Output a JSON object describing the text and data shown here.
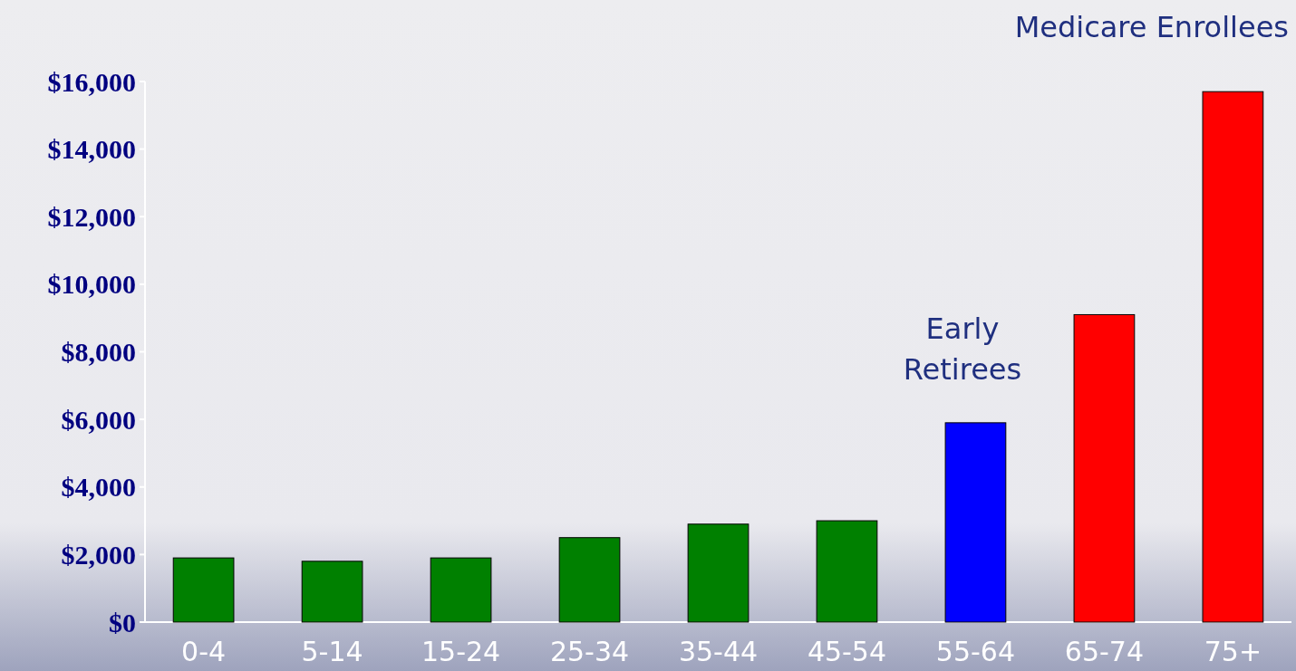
{
  "chart_data": {
    "type": "bar",
    "categories": [
      "0-4",
      "5-14",
      "15-24",
      "25-34",
      "35-44",
      "45-54",
      "55-64",
      "65-74",
      "75+"
    ],
    "values": [
      1900,
      1800,
      1900,
      2500,
      2900,
      3000,
      5900,
      9100,
      15700
    ],
    "colors": [
      "#008000",
      "#008000",
      "#008000",
      "#008000",
      "#008000",
      "#008000",
      "#0000ff",
      "#ff0000",
      "#ff0000"
    ],
    "ylim": [
      0,
      16000
    ],
    "yticks": [
      {
        "value": 0,
        "label": "$0"
      },
      {
        "value": 2000,
        "label": "$2,000"
      },
      {
        "value": 4000,
        "label": "$4,000"
      },
      {
        "value": 6000,
        "label": "$6,000"
      },
      {
        "value": 8000,
        "label": "$8,000"
      },
      {
        "value": 10000,
        "label": "$10,000"
      },
      {
        "value": 12000,
        "label": "$12,000"
      },
      {
        "value": 14000,
        "label": "$14,000"
      },
      {
        "value": 16000,
        "label": "$16,000"
      }
    ],
    "annotations": [
      "Early\nRetirees",
      "Medicare Enrollees"
    ],
    "grid": false
  }
}
